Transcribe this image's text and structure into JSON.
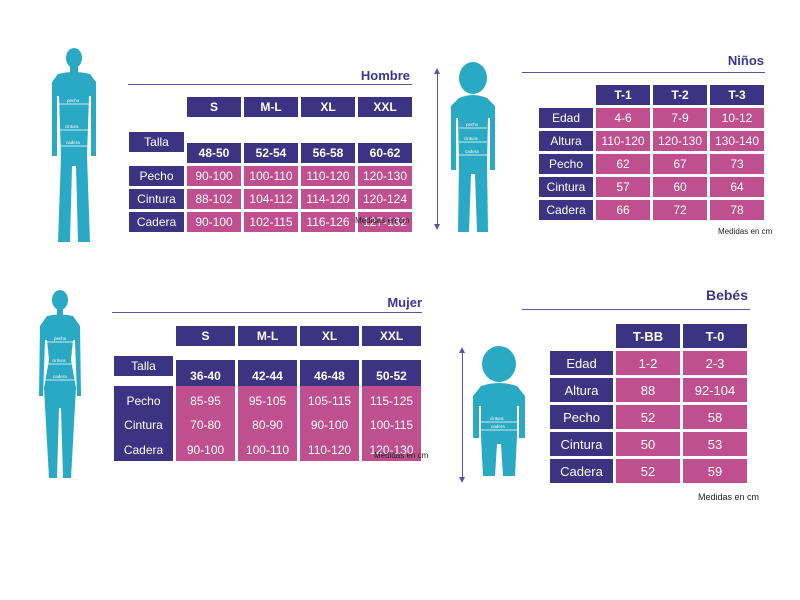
{
  "hombre": {
    "title": "Hombre",
    "sizes": [
      "S",
      "M-L",
      "XL",
      "XXL"
    ],
    "talla_label": "Talla",
    "talla_values": [
      "48-50",
      "52-54",
      "56-58",
      "60-62"
    ],
    "rows": [
      {
        "label": "Pecho",
        "values": [
          "90-100",
          "100-110",
          "110-120",
          "120-130"
        ]
      },
      {
        "label": "Cintura",
        "values": [
          "88-102",
          "104-112",
          "114-120",
          "120-124"
        ]
      },
      {
        "label": "Cadera",
        "values": [
          "90-100",
          "102-115",
          "116-126",
          "127-132"
        ]
      }
    ],
    "note": "Medidas en cm",
    "figure_labels": [
      "pecho",
      "cintura",
      "cadera"
    ]
  },
  "ninos": {
    "title": "Niños",
    "sizes": [
      "T-1",
      "T-2",
      "T-3"
    ],
    "rows": [
      {
        "label": "Edad",
        "values": [
          "4-6",
          "7-9",
          "10-12"
        ]
      },
      {
        "label": "Altura",
        "values": [
          "110-120",
          "120-130",
          "130-140"
        ]
      },
      {
        "label": "Pecho",
        "values": [
          "62",
          "67",
          "73"
        ]
      },
      {
        "label": "Cintura",
        "values": [
          "57",
          "60",
          "64"
        ]
      },
      {
        "label": "Cadera",
        "values": [
          "66",
          "72",
          "78"
        ]
      }
    ],
    "note": "Medidas en cm",
    "figure_labels": [
      "pecho",
      "cintura",
      "cadera"
    ]
  },
  "mujer": {
    "title": "Mujer",
    "sizes": [
      "S",
      "M-L",
      "XL",
      "XXL"
    ],
    "talla_label": "Talla",
    "talla_values": [
      "36-40",
      "42-44",
      "46-48",
      "50-52"
    ],
    "rows": [
      {
        "label": "Pecho",
        "values": [
          "85-95",
          "95-105",
          "105-115",
          "115-125"
        ]
      },
      {
        "label": "Cintura",
        "values": [
          "70-80",
          "80-90",
          "90-100",
          "100-115"
        ]
      },
      {
        "label": "Cadera",
        "values": [
          "90-100",
          "100-110",
          "110-120",
          "120-130"
        ]
      }
    ],
    "note": "Medidas en cm",
    "figure_labels": [
      "pecho",
      "cintura",
      "cadera"
    ]
  },
  "bebes": {
    "title": "Bebés",
    "sizes": [
      "T-BB",
      "T-0"
    ],
    "rows": [
      {
        "label": "Edad",
        "values": [
          "1-2",
          "2-3"
        ]
      },
      {
        "label": "Altura",
        "values": [
          "88",
          "92-104"
        ]
      },
      {
        "label": "Pecho",
        "values": [
          "52",
          "58"
        ]
      },
      {
        "label": "Cintura",
        "values": [
          "50",
          "53"
        ]
      },
      {
        "label": "Cadera",
        "values": [
          "52",
          "59"
        ]
      }
    ],
    "note": "Medidas en cm",
    "figure_labels": [
      "cintura",
      "cadera"
    ]
  },
  "colors": {
    "header": "#3d3383",
    "value": "#c04f8f",
    "figure": "#2aa9c4",
    "title": "#3d3590"
  }
}
